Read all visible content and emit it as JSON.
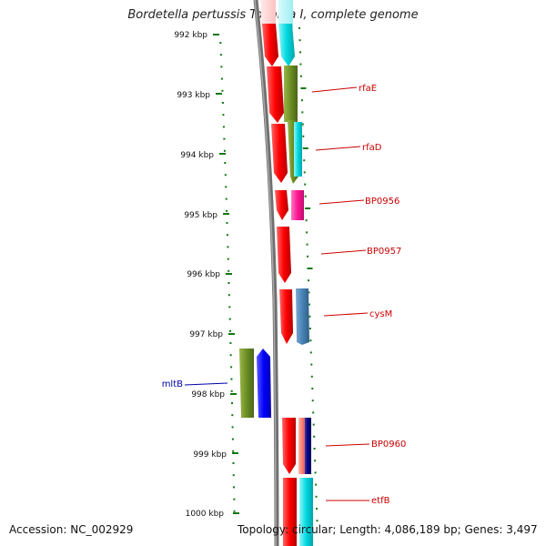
{
  "title": "Bordetella pertussis Tohama I, complete genome",
  "accession": "Accession: NC_002929",
  "topology": "Topology: circular; Length: 4,086,189 bp; Genes: 3,497",
  "scale_labels": [
    "992 kbp",
    "993 kbp",
    "994 kbp",
    "995 kbp",
    "996 kbp",
    "997 kbp",
    "998 kbp",
    "999 kbp",
    "1000 kbp"
  ],
  "gene_labels": [
    {
      "name": "rfaE",
      "color": "#cc0000"
    },
    {
      "name": "rfaD",
      "color": "#cc0000"
    },
    {
      "name": "BP0956",
      "color": "#cc0000"
    },
    {
      "name": "BP0957",
      "color": "#cc0000"
    },
    {
      "name": "cysM",
      "color": "#cc0000"
    },
    {
      "name": "mltB",
      "color": "#0000aa"
    },
    {
      "name": "BP0960",
      "color": "#cc0000"
    },
    {
      "name": "etfB",
      "color": "#cc0000"
    }
  ],
  "colors": {
    "tick": "#117711",
    "backbone": "#777777",
    "red": "#ff0000",
    "olive": "#6b8e23",
    "cyan": "#00d8e0",
    "magenta": "#ff1493",
    "steel": "#4682b4",
    "blue": "#0000ff",
    "salmon": "#fa8072",
    "navy": "#000080"
  }
}
